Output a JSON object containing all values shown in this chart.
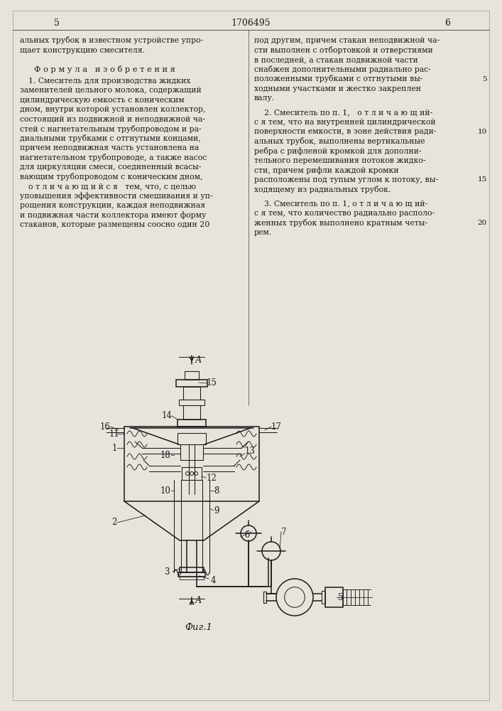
{
  "bg_color": "#e8e4dc",
  "text_color": "#1a1a1a",
  "line_color": "#1a1a1a",
  "title_number": "1706495",
  "page_left": "5",
  "page_right": "6",
  "fig_caption": "Физ.1"
}
